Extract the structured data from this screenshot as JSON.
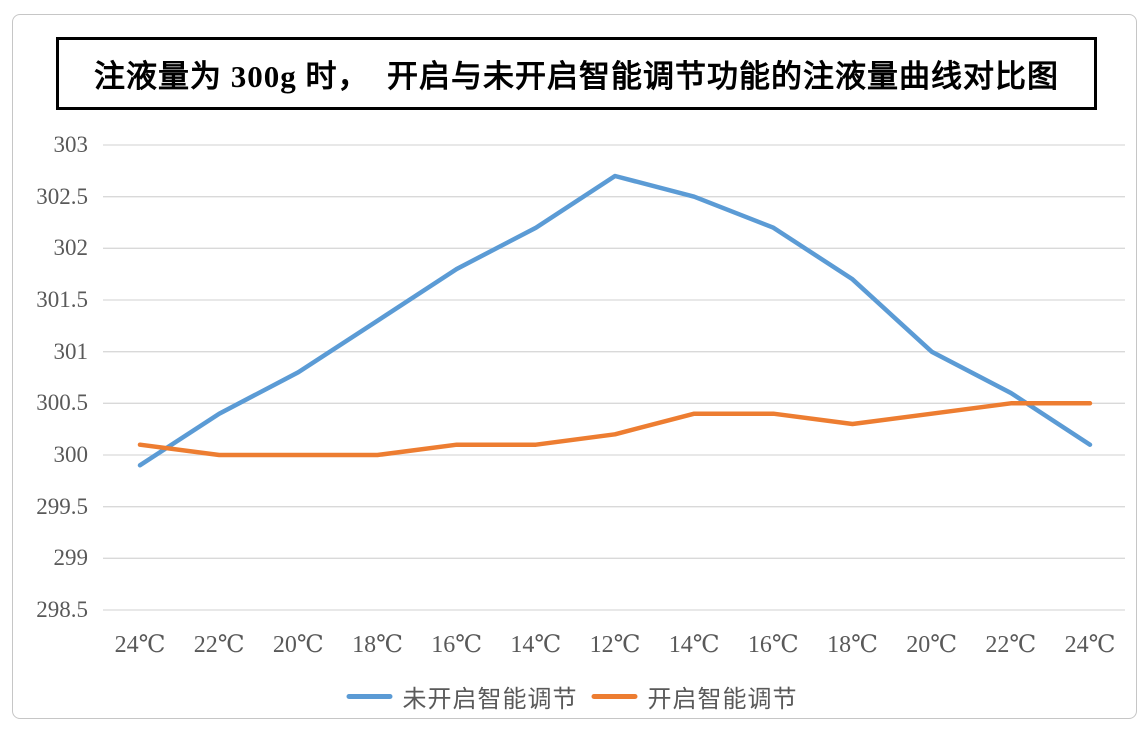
{
  "title": "注液量为 300g 时，  开启与未开启智能调节功能的注液量曲线对比图",
  "chart_data": {
    "type": "line",
    "categories": [
      "24℃",
      "22℃",
      "20℃",
      "18℃",
      "16℃",
      "14℃",
      "12℃",
      "14℃",
      "16℃",
      "18℃",
      "20℃",
      "22℃",
      "24℃"
    ],
    "series": [
      {
        "name": "未开启智能调节",
        "color": "#5B9BD5",
        "values": [
          299.9,
          300.4,
          300.8,
          301.3,
          301.8,
          302.2,
          302.7,
          302.5,
          302.2,
          301.7,
          301.0,
          300.6,
          300.1
        ]
      },
      {
        "name": "开启智能调节",
        "color": "#ED7D31",
        "values": [
          300.1,
          300.0,
          300.0,
          300.0,
          300.1,
          300.1,
          300.2,
          300.4,
          300.4,
          300.3,
          300.4,
          300.5,
          300.5
        ]
      }
    ],
    "xlabel": "",
    "ylabel": "",
    "ylim": [
      298.5,
      303
    ],
    "y_tick_step": 0.5,
    "y_tick_labels": [
      "303",
      "302.5",
      "302",
      "301.5",
      "301",
      "300.5",
      "300",
      "299.5",
      "299",
      "298.5"
    ],
    "grid": true,
    "gridline_color": "#D9D9D9",
    "axis_label_color": "#595959",
    "legend_position": "bottom"
  }
}
